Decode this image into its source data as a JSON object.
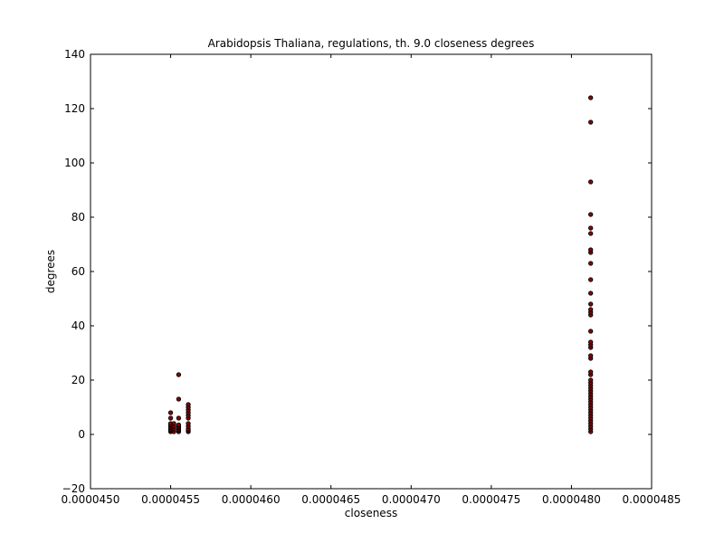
{
  "chart_data": {
    "type": "scatter",
    "title": "Arabidopsis Thaliana, regulations, th. 9.0 closeness degrees",
    "xlabel": "closeness",
    "ylabel": "degrees",
    "xlim": [
      0.000445,
      4.85e-05
    ],
    "ylim": [
      -20,
      140
    ],
    "xticks": [
      "0.0000450",
      "0.0000455",
      "0.0000460",
      "0.0000465",
      "0.0000470",
      "0.0000475",
      "0.0000480",
      "0.0000485"
    ],
    "yticks": [
      "−20",
      "0",
      "20",
      "40",
      "60",
      "80",
      "100",
      "120",
      "140"
    ],
    "grid": false,
    "marker_color": "#8b0000",
    "marker_edge": "#000000",
    "series": [
      {
        "points": [
          [
            4.55e-05,
            1
          ],
          [
            4.55e-05,
            1.5
          ],
          [
            4.55e-05,
            2
          ],
          [
            4.55e-05,
            2.5
          ],
          [
            4.55e-05,
            3
          ],
          [
            4.55e-05,
            3.5
          ],
          [
            4.55e-05,
            4
          ],
          [
            4.55e-05,
            6
          ],
          [
            4.55e-05,
            8
          ],
          [
            4.552e-05,
            1
          ],
          [
            4.552e-05,
            2
          ],
          [
            4.552e-05,
            3
          ],
          [
            4.552e-05,
            4
          ],
          [
            4.555e-05,
            1
          ],
          [
            4.555e-05,
            1.5
          ],
          [
            4.555e-05,
            2
          ],
          [
            4.555e-05,
            2.5
          ],
          [
            4.555e-05,
            3
          ],
          [
            4.555e-05,
            3.5
          ],
          [
            4.555e-05,
            6
          ],
          [
            4.555e-05,
            13
          ],
          [
            4.555e-05,
            22
          ],
          [
            4.561e-05,
            1
          ],
          [
            4.561e-05,
            1.5
          ],
          [
            4.561e-05,
            2
          ],
          [
            4.561e-05,
            3
          ],
          [
            4.561e-05,
            4
          ],
          [
            4.561e-05,
            6
          ],
          [
            4.561e-05,
            7
          ],
          [
            4.561e-05,
            8
          ],
          [
            4.561e-05,
            9
          ],
          [
            4.561e-05,
            10
          ],
          [
            4.561e-05,
            11
          ],
          [
            4.812e-05,
            1
          ],
          [
            4.812e-05,
            2
          ],
          [
            4.812e-05,
            3
          ],
          [
            4.812e-05,
            4
          ],
          [
            4.812e-05,
            5
          ],
          [
            4.812e-05,
            6
          ],
          [
            4.812e-05,
            7
          ],
          [
            4.812e-05,
            8
          ],
          [
            4.812e-05,
            9
          ],
          [
            4.812e-05,
            10
          ],
          [
            4.812e-05,
            11
          ],
          [
            4.812e-05,
            12
          ],
          [
            4.812e-05,
            13
          ],
          [
            4.812e-05,
            14
          ],
          [
            4.812e-05,
            15
          ],
          [
            4.812e-05,
            16
          ],
          [
            4.812e-05,
            17
          ],
          [
            4.812e-05,
            18
          ],
          [
            4.812e-05,
            19
          ],
          [
            4.812e-05,
            20
          ],
          [
            4.812e-05,
            22
          ],
          [
            4.812e-05,
            23
          ],
          [
            4.812e-05,
            28
          ],
          [
            4.812e-05,
            29
          ],
          [
            4.812e-05,
            32
          ],
          [
            4.812e-05,
            33
          ],
          [
            4.812e-05,
            34
          ],
          [
            4.812e-05,
            38
          ],
          [
            4.812e-05,
            44
          ],
          [
            4.812e-05,
            45
          ],
          [
            4.812e-05,
            46
          ],
          [
            4.812e-05,
            48
          ],
          [
            4.812e-05,
            52
          ],
          [
            4.812e-05,
            57
          ],
          [
            4.812e-05,
            63
          ],
          [
            4.812e-05,
            67
          ],
          [
            4.812e-05,
            68
          ],
          [
            4.812e-05,
            74
          ],
          [
            4.812e-05,
            76
          ],
          [
            4.812e-05,
            81
          ],
          [
            4.812e-05,
            93
          ],
          [
            4.812e-05,
            115
          ],
          [
            4.812e-05,
            124
          ]
        ]
      }
    ]
  }
}
